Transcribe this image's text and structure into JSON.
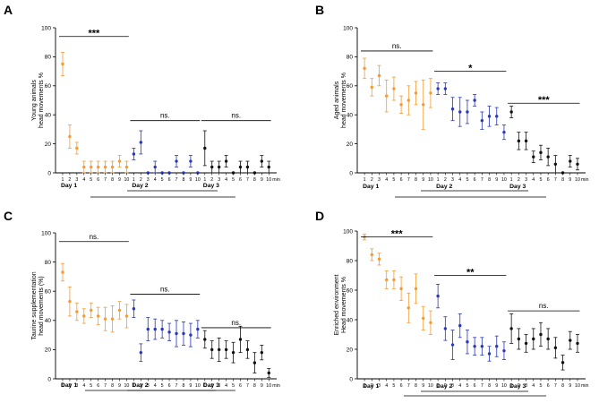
{
  "colors": {
    "young": "#f59b30",
    "mid": "#2a37b8",
    "old": "#111111",
    "axis": "#000000"
  },
  "chart_data": [
    {
      "id": "A",
      "type": "scatter",
      "panel_letter": "A",
      "ylabel_line1": "Young animals",
      "ylabel_line2": "head movements %",
      "ylim": [
        0,
        100
      ],
      "yticks": [
        "0",
        "20",
        "40",
        "60",
        "80",
        "100"
      ],
      "x_min_label": "min",
      "series": [
        {
          "name": "Day 1",
          "color_key": "young",
          "x_ticks": [
            "1",
            "2",
            "3",
            "4",
            "5",
            "6",
            "7",
            "8",
            "9",
            "10"
          ],
          "mean": [
            75,
            25,
            17,
            4,
            4,
            4,
            4,
            4,
            8,
            4
          ],
          "err": [
            8,
            8,
            4,
            4,
            4,
            4,
            4,
            4,
            4,
            4
          ]
        },
        {
          "name": "Day 2",
          "color_key": "mid",
          "x_ticks": [
            "1",
            "2",
            "3",
            "4",
            "5",
            "6",
            "7",
            "8",
            "9",
            "10"
          ],
          "mean": [
            13,
            21,
            0,
            4,
            0,
            0,
            8,
            0,
            8,
            0
          ],
          "err": [
            4,
            8,
            0,
            4,
            0,
            0,
            4,
            0,
            4,
            0
          ]
        },
        {
          "name": "Day 3",
          "color_key": "old",
          "x_ticks": [
            "1",
            "2",
            "3",
            "4",
            "5",
            "6",
            "7",
            "8",
            "9",
            "10"
          ],
          "mean": [
            17,
            4,
            4,
            8,
            0,
            4,
            4,
            0,
            8,
            4
          ],
          "err": [
            12,
            4,
            4,
            4,
            0,
            4,
            4,
            0,
            4,
            4
          ]
        }
      ],
      "day_labels": [
        {
          "label": "Day 1",
          "series": 0
        },
        {
          "label": "Day 2",
          "series": 1
        },
        {
          "label": "Day 3",
          "series": 2
        }
      ],
      "significance": [
        {
          "label": "***",
          "series": 0,
          "y": 94
        },
        {
          "label": "ns.",
          "series": 1,
          "y": 36
        },
        {
          "label": "ns.",
          "series": 2,
          "y": 36
        }
      ]
    },
    {
      "id": "B",
      "type": "scatter",
      "panel_letter": "B",
      "ylabel_line1": "Aged animals",
      "ylabel_line2": "head movements %",
      "ylim": [
        0,
        100
      ],
      "yticks": [
        "0",
        "20",
        "40",
        "60",
        "80",
        "100"
      ],
      "x_min_label": "min",
      "series": [
        {
          "name": "Day 1",
          "color_key": "young",
          "x_ticks": [
            "1",
            "2",
            "3",
            "4",
            "5",
            "6",
            "7",
            "8",
            "9",
            "10"
          ],
          "mean": [
            72,
            59,
            67,
            53,
            58,
            47,
            50,
            55,
            47,
            55
          ],
          "err": [
            7,
            6,
            7,
            11,
            8,
            6,
            10,
            8,
            17,
            10
          ]
        },
        {
          "name": "Day 2",
          "color_key": "mid",
          "x_ticks": [
            "1",
            "2",
            "3",
            "4",
            "5",
            "6",
            "7",
            "8",
            "9",
            "10"
          ],
          "mean": [
            58,
            58,
            44,
            42,
            42,
            50,
            36,
            39,
            39,
            28
          ],
          "err": [
            4,
            4,
            8,
            10,
            8,
            4,
            6,
            7,
            6,
            5
          ]
        },
        {
          "name": "Day 3",
          "color_key": "old",
          "x_ticks": [
            "1",
            "2",
            "3",
            "4",
            "5",
            "6",
            "7",
            "8",
            "9",
            "10"
          ],
          "mean": [
            42,
            22,
            22,
            11,
            14,
            11,
            6,
            0,
            8,
            6
          ],
          "err": [
            4,
            6,
            6,
            4,
            5,
            6,
            6,
            0,
            4,
            4
          ]
        }
      ],
      "day_labels": [
        {
          "label": "Day 1",
          "series": 0
        },
        {
          "label": "Day 2",
          "series": 1
        },
        {
          "label": "Day 3",
          "series": 2
        }
      ],
      "significance": [
        {
          "label": "ns.",
          "series": 0,
          "y": 84
        },
        {
          "label": "*",
          "series": 1,
          "y": 70
        },
        {
          "label": "***",
          "series": 2,
          "y": 48
        }
      ]
    },
    {
      "id": "C",
      "type": "scatter",
      "panel_letter": "C",
      "ylabel_line1": "Taurine supplementation",
      "ylabel_line2": "head movements (%)",
      "ylim": [
        0,
        100
      ],
      "yticks": [
        "0",
        "20",
        "40",
        "60",
        "80",
        "100"
      ],
      "x_min_label": "min",
      "series": [
        {
          "name": "Day 1",
          "color_key": "young",
          "x_ticks": [
            "1",
            "2",
            "3",
            "4",
            "5",
            "6",
            "7",
            "8",
            "9",
            "10"
          ],
          "mean": [
            73,
            53,
            46,
            43,
            47,
            43,
            41,
            41,
            47,
            43
          ],
          "err": [
            6,
            10,
            6,
            5,
            5,
            6,
            8,
            9,
            6,
            8
          ]
        },
        {
          "name": "Day 2",
          "color_key": "mid",
          "x_ticks": [
            "1",
            "2",
            "3",
            "4",
            "5",
            "6",
            "7",
            "8",
            "9",
            "10"
          ],
          "mean": [
            48,
            18,
            34,
            34,
            34,
            32,
            31,
            31,
            30,
            34
          ],
          "err": [
            6,
            6,
            8,
            7,
            6,
            6,
            9,
            8,
            8,
            6
          ]
        },
        {
          "name": "Day 3",
          "color_key": "old",
          "x_ticks": [
            "1",
            "2",
            "3",
            "4",
            "5",
            "6",
            "7",
            "8",
            "9",
            "10"
          ],
          "mean": [
            27,
            20,
            20,
            20,
            18,
            27,
            20,
            11,
            18,
            4
          ],
          "err": [
            6,
            6,
            8,
            6,
            7,
            9,
            6,
            7,
            5,
            3
          ]
        }
      ],
      "day_labels": [
        {
          "label": "Day 1",
          "series": 0
        },
        {
          "label": "Day 2",
          "series": 1
        },
        {
          "label": "Day 3",
          "series": 2
        }
      ],
      "significance": [
        {
          "label": "ns.",
          "series": 0,
          "y": 94
        },
        {
          "label": "ns.",
          "series": 1,
          "y": 58
        },
        {
          "label": "ns.",
          "series": 2,
          "y": 35
        }
      ]
    },
    {
      "id": "D",
      "type": "scatter",
      "panel_letter": "D",
      "ylabel_line1": "Enriched environment",
      "ylabel_line2": "Head movements %",
      "ylim": [
        0,
        100
      ],
      "yticks": [
        "0",
        "20",
        "40",
        "60",
        "80",
        "100"
      ],
      "x_min_label": "min",
      "series": [
        {
          "name": "Day 1",
          "color_key": "young",
          "x_ticks": [
            "1",
            "2",
            "3",
            "4",
            "5",
            "6",
            "7",
            "8",
            "9",
            "10"
          ],
          "mean": [
            96,
            84,
            81,
            67,
            67,
            61,
            48,
            61,
            41,
            38
          ],
          "err": [
            2,
            4,
            4,
            6,
            6,
            8,
            10,
            10,
            8,
            8
          ]
        },
        {
          "name": "Day 2",
          "color_key": "mid",
          "x_ticks": [
            "1",
            "2",
            "3",
            "4",
            "5",
            "6",
            "7",
            "8",
            "9",
            "10"
          ],
          "mean": [
            56,
            34,
            23,
            36,
            25,
            22,
            22,
            17,
            22,
            19
          ],
          "err": [
            8,
            8,
            10,
            8,
            8,
            6,
            6,
            5,
            7,
            6
          ]
        },
        {
          "name": "Day 3",
          "color_key": "old",
          "x_ticks": [
            "1",
            "2",
            "3",
            "4",
            "5",
            "6",
            "7",
            "8",
            "9",
            "10"
          ],
          "mean": [
            34,
            27,
            24,
            27,
            30,
            27,
            21,
            11,
            26,
            24
          ],
          "err": [
            10,
            7,
            6,
            7,
            8,
            7,
            7,
            5,
            6,
            6
          ]
        }
      ],
      "day_labels": [
        {
          "label": "Day 1",
          "series": 0
        },
        {
          "label": "Day 2",
          "series": 1
        },
        {
          "label": "Day 3",
          "series": 2
        }
      ],
      "significance": [
        {
          "label": "***",
          "series": 0,
          "y": 96
        },
        {
          "label": "**",
          "series": 1,
          "y": 70
        },
        {
          "label": "ns.",
          "series": 2,
          "y": 46
        }
      ]
    }
  ]
}
